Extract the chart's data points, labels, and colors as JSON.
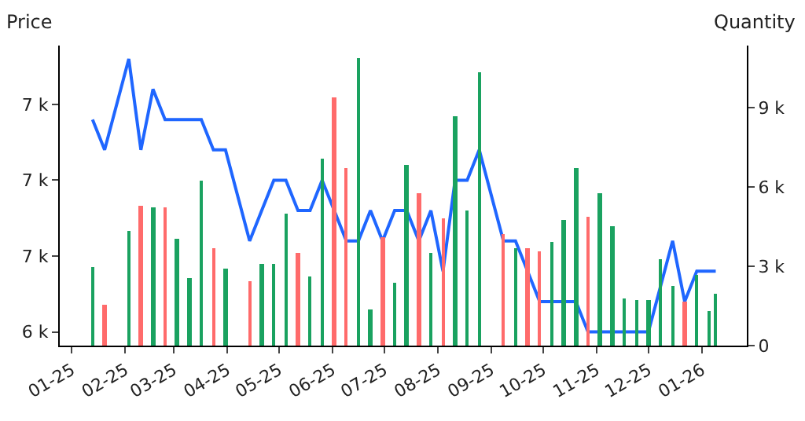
{
  "chart_data": {
    "type": "line",
    "ylabel": "Price",
    "y2label": "Quantity",
    "x": [
      "2025-01-13",
      "2025-01-20",
      "2025-02-03",
      "2025-02-10",
      "2025-02-17",
      "2025-02-24",
      "2025-03-03",
      "2025-03-10",
      "2025-03-17",
      "2025-03-24",
      "2025-03-31",
      "2025-04-14",
      "2025-04-21",
      "2025-04-28",
      "2025-05-05",
      "2025-05-12",
      "2025-05-19",
      "2025-05-26",
      "2025-06-02",
      "2025-06-09",
      "2025-06-16",
      "2025-06-23",
      "2025-06-30",
      "2025-07-07",
      "2025-07-14",
      "2025-07-21",
      "2025-07-28",
      "2025-08-04",
      "2025-08-11",
      "2025-08-18",
      "2025-08-25",
      "2025-09-08",
      "2025-09-15",
      "2025-09-22",
      "2025-09-29",
      "2025-10-06",
      "2025-10-13",
      "2025-10-20",
      "2025-10-27",
      "2025-11-03",
      "2025-11-10",
      "2025-11-17",
      "2025-11-24",
      "2025-12-01",
      "2025-12-08",
      "2025-12-15",
      "2025-12-22",
      "2025-12-29",
      "2026-01-05",
      "2026-01-09"
    ],
    "series": [
      {
        "type": "bar",
        "axis": "y2",
        "values": [
          2950,
          1540,
          4350,
          5290,
          5230,
          5230,
          4060,
          2580,
          6230,
          3710,
          2890,
          2420,
          3120,
          3120,
          5000,
          3530,
          2600,
          7090,
          9390,
          6700,
          10860,
          1370,
          4120,
          2360,
          6830,
          5760,
          3530,
          4820,
          8670,
          5110,
          10330,
          4240,
          3710,
          3710,
          3590,
          3940,
          4760,
          6700,
          4880,
          5760,
          4530,
          1780,
          1720,
          1720,
          3300,
          2240,
          1660,
          2650,
          1310,
          1950
        ],
        "colors": [
          "#1aa260",
          "#ff6b6b",
          "#1aa260",
          "#ff6b6b",
          "#1aa260",
          "#ff6b6b",
          "#1aa260",
          "#1aa260",
          "#1aa260",
          "#ff6b6b",
          "#1aa260",
          "#ff6b6b",
          "#1aa260",
          "#1aa260",
          "#1aa260",
          "#ff6b6b",
          "#1aa260",
          "#1aa260",
          "#ff6b6b",
          "#ff6b6b",
          "#1aa260",
          "#1aa260",
          "#ff6b6b",
          "#1aa260",
          "#1aa260",
          "#ff6b6b",
          "#1aa260",
          "#ff6b6b",
          "#1aa260",
          "#1aa260",
          "#1aa260",
          "#ff6b6b",
          "#1aa260",
          "#ff6b6b",
          "#ff6b6b",
          "#1aa260",
          "#1aa260",
          "#1aa260",
          "#ff6b6b",
          "#1aa260",
          "#1aa260",
          "#1aa260",
          "#1aa260",
          "#1aa260",
          "#1aa260",
          "#1aa260",
          "#ff6b6b",
          "#1aa260",
          "#1aa260",
          "#1aa260"
        ]
      },
      {
        "color": "#1f66ff",
        "values": [
          6960,
          6880,
          7120,
          6880,
          7040,
          6960,
          6960,
          6960,
          6960,
          6880,
          6880,
          6640,
          6720,
          6800,
          6800,
          6720,
          6720,
          6800,
          6720,
          6640,
          6640,
          6720,
          6640,
          6720,
          6720,
          6640,
          6720,
          6560,
          6800,
          6800,
          6880,
          6640,
          6640,
          6560,
          6480,
          6480,
          6480,
          6480,
          6400,
          6400,
          6400,
          6400,
          6400,
          6400,
          6520,
          6640,
          6480,
          6560,
          6560,
          6560
        ]
      }
    ],
    "xlim": [
      "2024-12-25",
      "2026-01-27"
    ],
    "xticks": [
      {
        "value": "2025-01-01",
        "label": "01-25"
      },
      {
        "value": "2025-02-01",
        "label": "02-25"
      },
      {
        "value": "2025-03-01",
        "label": "03-25"
      },
      {
        "value": "2025-04-01",
        "label": "04-25"
      },
      {
        "value": "2025-05-01",
        "label": "05-25"
      },
      {
        "value": "2025-06-01",
        "label": "06-25"
      },
      {
        "value": "2025-07-01",
        "label": "07-25"
      },
      {
        "value": "2025-08-01",
        "label": "08-25"
      },
      {
        "value": "2025-09-01",
        "label": "09-25"
      },
      {
        "value": "2025-10-01",
        "label": "10-25"
      },
      {
        "value": "2025-11-01",
        "label": "11-25"
      },
      {
        "value": "2025-12-01",
        "label": "12-25"
      },
      {
        "value": "2026-01-01",
        "label": "01-26"
      }
    ],
    "ylim": [
      6364,
      7155
    ],
    "yticks": [
      {
        "value": 6400,
        "label": "6 k"
      },
      {
        "value": 6600,
        "label": "7 k"
      },
      {
        "value": 6800,
        "label": "7 k"
      },
      {
        "value": 7000,
        "label": "7 k"
      }
    ],
    "y2lim": [
      0,
      11360
    ],
    "y2ticks": [
      0,
      {
        "value": 3000,
        "label": "3 k"
      },
      {
        "value": 6000,
        "label": "6 k"
      },
      {
        "value": 9000,
        "label": "9 k"
      }
    ]
  }
}
